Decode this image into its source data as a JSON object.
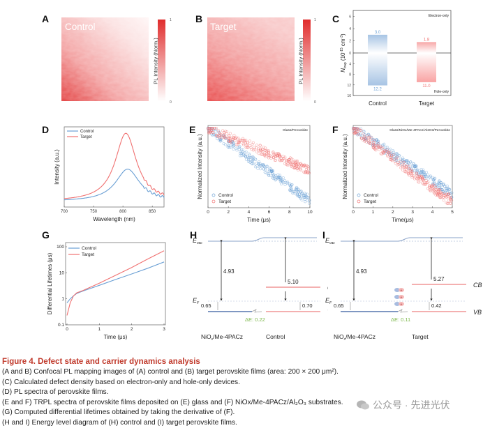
{
  "figure": {
    "panels": {
      "A": {
        "letter": "A",
        "overlay_label": "Control",
        "colorbar_label": "PL Intensity (Norm.)",
        "colorbar_max": "1",
        "colorbar_min": "0"
      },
      "B": {
        "letter": "B",
        "overlay_label": "Target",
        "colorbar_label": "PL Intensity (Norm.)",
        "colorbar_max": "1",
        "colorbar_min": "0"
      },
      "C": {
        "letter": "C"
      },
      "D": {
        "letter": "D"
      },
      "E": {
        "letter": "E"
      },
      "F": {
        "letter": "F"
      },
      "G": {
        "letter": "G"
      },
      "H": {
        "letter": "H",
        "evac_label": "E",
        "evac_sub": "vac",
        "ef_label": "E",
        "ef_sub": "F",
        "wf_left": "4.93",
        "wf_right": "5.10",
        "ef_offset_left": "0.65",
        "ef_offset_right": "0.70",
        "delta_e": "ΔE: 0.22",
        "cb": "CB",
        "vb": "VB",
        "left_material": "NiOx/Me-4PACz",
        "right_material": "Control"
      },
      "I": {
        "letter": "I",
        "evac_label": "E",
        "evac_sub": "vac",
        "ef_label": "E",
        "ef_sub": "F",
        "wf_left": "4.93",
        "wf_right": "5.27",
        "ef_offset_left": "0.65",
        "ef_offset_right": "0.42",
        "delta_e": "ΔE: 0.11",
        "cb": "CB",
        "vb": "VB",
        "left_material": "NiOx/Me-4PACz",
        "right_material": "Target",
        "dipole_minus": "-",
        "dipole_plus": "+"
      }
    },
    "colors": {
      "control": "#6a9fd4",
      "target": "#f07070",
      "delta_e": "#7ab648",
      "caption_title": "#c0392b"
    }
  },
  "chart_data": [
    {
      "panel": "C",
      "type": "bar",
      "categories": [
        "Control",
        "Target"
      ],
      "series": [
        {
          "name": "Electron-only",
          "values": [
            3.0,
            1.8
          ]
        },
        {
          "name": "Hole-only",
          "values": [
            12.2,
            11.0
          ]
        }
      ],
      "labels": {
        "electron": [
          "3.0",
          "1.8"
        ],
        "hole": [
          "12.2",
          "11.0"
        ]
      },
      "annotations": [
        "Electron-only",
        "Hole-only"
      ],
      "ylabel": "N_trap (10^-15 cm^-3)",
      "ylabel_main": "N",
      "ylabel_sub": "trap",
      "ylabel_unit": " (10",
      "ylabel_exp": "-15",
      "ylabel_unit2": " cm",
      "ylabel_exp2": "-3",
      "ylabel_close": ")",
      "yticks_top": [
        "6",
        "4",
        "2",
        "0"
      ],
      "yticks_bottom": [
        "4",
        "8",
        "12",
        "16"
      ],
      "ylim_top": [
        0,
        7
      ],
      "ylim_bottom": [
        0,
        16
      ]
    },
    {
      "panel": "D",
      "type": "line",
      "xlabel": "Wavelength (nm)",
      "ylabel": "Intensity (a.u.)",
      "xlim": [
        700,
        870
      ],
      "xticks": [
        "700",
        "750",
        "800",
        "850"
      ],
      "legend": [
        "Control",
        "Target"
      ],
      "legend_position": "top-left",
      "series": [
        {
          "name": "Control",
          "peak_nm": 808,
          "peak_rel": 0.45,
          "width": 25
        },
        {
          "name": "Target",
          "peak_nm": 805,
          "peak_rel": 0.95,
          "width": 22
        }
      ]
    },
    {
      "panel": "E",
      "type": "scatter",
      "xlabel": "Time (μs)",
      "ylabel": "Normalized Intensity (a.u.)",
      "xlim": [
        0,
        10
      ],
      "xticks": [
        "0",
        "2",
        "4",
        "6",
        "8",
        "10"
      ],
      "annotation": "Glass/Perovskite",
      "legend": [
        "Control",
        "Target"
      ],
      "legend_position": "bottom-left",
      "series": [
        {
          "name": "Control",
          "decay_rate": 0.38
        },
        {
          "name": "Target",
          "decay_rate": 0.11
        }
      ]
    },
    {
      "panel": "F",
      "type": "scatter",
      "xlabel": "Time(μs)",
      "ylabel": "Normalized Intensity (a.u.)",
      "xlim": [
        0,
        5
      ],
      "xticks": [
        "0",
        "1",
        "2",
        "3",
        "4",
        "5"
      ],
      "annotation": "Glass/NiOx/Me-4PACz/Al2O3/Perovskite",
      "legend": [
        "Control",
        "Target"
      ],
      "legend_position": "bottom-left",
      "series": [
        {
          "name": "Control",
          "decay_rate": 0.55
        },
        {
          "name": "Target",
          "decay_rate": 0.85
        }
      ]
    },
    {
      "panel": "G",
      "type": "line",
      "xlabel": "Time (μs)",
      "ylabel": "Differential Lifetimes (μs)",
      "xlim": [
        0,
        3
      ],
      "ylim": [
        0.1,
        100
      ],
      "yscale": "log",
      "xticks": [
        "0",
        "1",
        "2",
        "3"
      ],
      "yticks": [
        "0.1",
        "1",
        "10",
        "100"
      ],
      "legend": [
        "Control",
        "Target"
      ],
      "legend_position": "top-left",
      "series": [
        {
          "name": "Control",
          "x": [
            0,
            0.1,
            0.2,
            0.3,
            0.5,
            1,
            1.5,
            2,
            2.5,
            3
          ],
          "y": [
            0.7,
            1.0,
            1.3,
            1.6,
            2.0,
            3.3,
            5.5,
            9,
            15,
            26
          ]
        },
        {
          "name": "Target",
          "x": [
            0,
            0.05,
            0.1,
            0.2,
            0.3,
            0.5,
            1,
            1.5,
            2,
            2.5,
            3
          ],
          "y": [
            0.23,
            0.4,
            0.7,
            1.3,
            1.7,
            2.1,
            4.0,
            8,
            16,
            34,
            70
          ]
        }
      ]
    }
  ],
  "caption": {
    "title": "Figure 4.  Defect state and carrier dynamics analysis",
    "lines": [
      "(A and B) Confocal PL mapping images of (A) control and (B) target perovskite films (area: 200 × 200 μm²).",
      "(C) Calculated defect density based on electron-only and hole-only devices.",
      "(D) PL spectra of perovskite films.",
      "(E and F) TRPL spectra of perovskite films deposited on (E) glass and (F) NiOx/Me-4PACz/Al₂O₃ substrates.",
      "(G) Computed differential lifetimes obtained by taking the derivative of (F).",
      "(H and I) Energy level diagram of (H) control and (I) target perovskite films."
    ]
  },
  "watermark": {
    "text": "公众号 · 先进光伏"
  }
}
